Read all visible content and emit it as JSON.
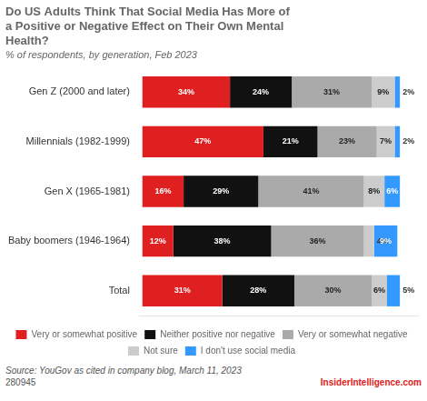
{
  "chart_data": {
    "type": "bar",
    "orientation": "horizontal",
    "stacked": true,
    "title": "Do US Adults Think That Social Media Has More of\na Positive or Negative Effect on Their Own Mental\nHealth?",
    "subtitle": "% of respondents, by generation, Feb 2023",
    "categories": [
      "Gen Z (2000 and later)",
      "Millennials (1982-1999)",
      "Gen X (1965-1981)",
      "Baby boomers (1946-1964)",
      "Total"
    ],
    "series": [
      {
        "name": "Very or somewhat positive",
        "color": "#e02020",
        "values": [
          34,
          47,
          16,
          12,
          31
        ],
        "value_labels": [
          "34%",
          "47%",
          "16%",
          "12%",
          "31%"
        ]
      },
      {
        "name": "Neither positive nor negative",
        "color": "#111111",
        "values": [
          24,
          21,
          29,
          38,
          28
        ],
        "value_labels": [
          "24%",
          "21%",
          "29%",
          "38%",
          "28%"
        ]
      },
      {
        "name": "Very or somewhat negative",
        "color": "#aaaaaa",
        "values": [
          31,
          23,
          41,
          36,
          30
        ],
        "value_labels": [
          "31%",
          "23%",
          "41%",
          "36%",
          "30%"
        ]
      },
      {
        "name": "Not sure",
        "color": "#cccccc",
        "values": [
          9,
          7,
          8,
          4,
          6
        ],
        "value_labels": [
          "9%",
          "7%",
          "8%",
          "4%",
          "6%"
        ]
      },
      {
        "name": "I don't use social media",
        "color": "#3399ff",
        "values": [
          2,
          2,
          6,
          9,
          5
        ],
        "value_labels": [
          "2%",
          "2%",
          "6%",
          "9%",
          "5%"
        ]
      }
    ],
    "xlim": [
      -1,
      107
    ],
    "tick_labels": "y",
    "grid": false,
    "data_labels": true,
    "legend": "bottom",
    "annotations": [
      "Source: YouGov as cited in company blog, March 11, 2023",
      "280945",
      "InsiderIntelligence.com"
    ]
  }
}
